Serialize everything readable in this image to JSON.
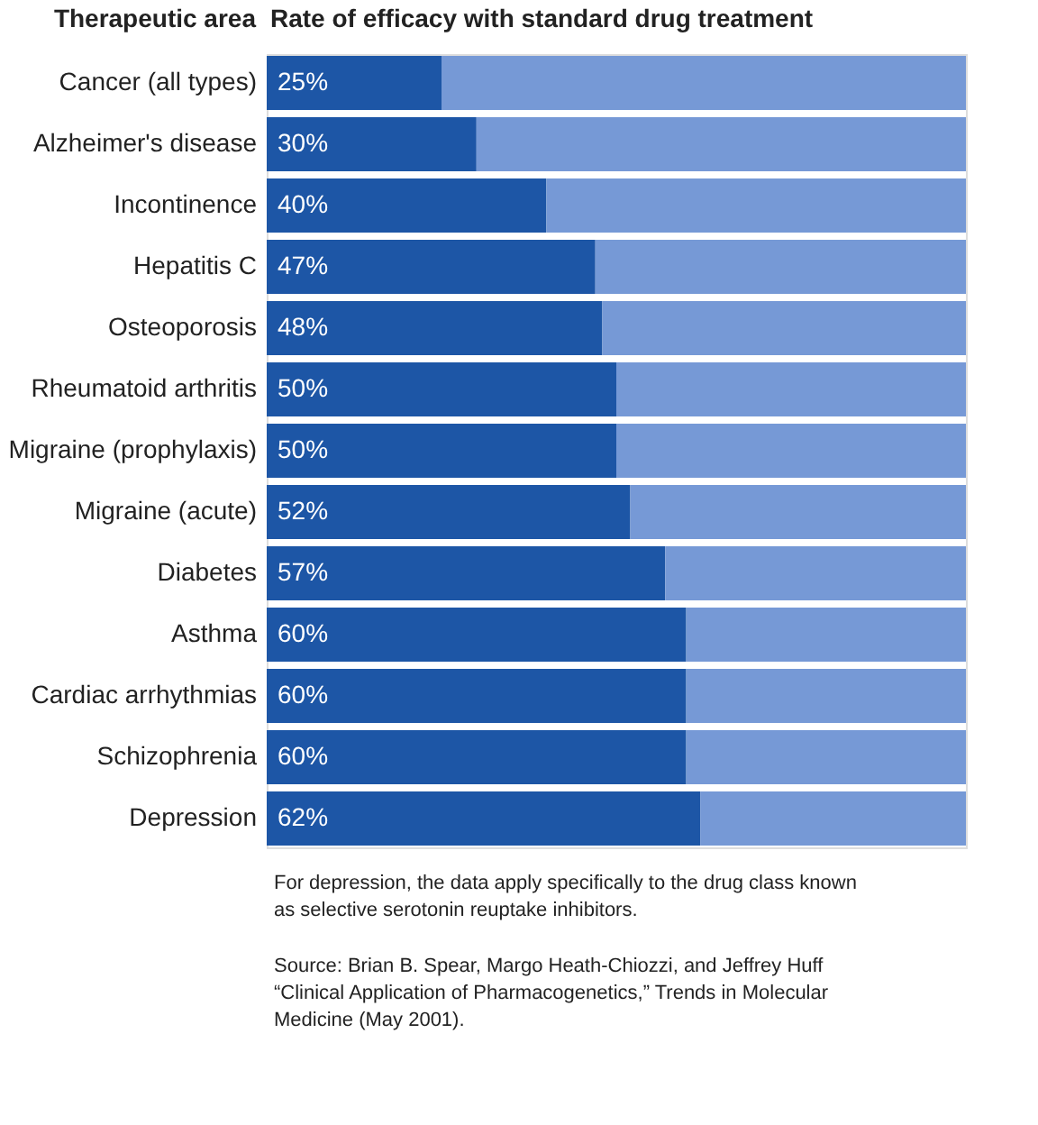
{
  "chart_data": {
    "type": "bar",
    "orientation": "horizontal",
    "stacked": true,
    "title": "Rate of efficacy with standard drug treatment",
    "ylabel": "Therapeutic area",
    "categories": [
      "Cancer (all types)",
      "Alzheimer's disease",
      "Incontinence",
      "Hepatitis C",
      "Osteoporosis",
      "Rheumatoid arthritis",
      "Migraine (prophylaxis)",
      "Migraine (acute)",
      "Diabetes",
      "Asthma",
      "Cardiac arrhythmias",
      "Schizophrenia",
      "Depression"
    ],
    "series": [
      {
        "color": "#1d56a6",
        "values": [
          25,
          30,
          40,
          47,
          48,
          50,
          50,
          52,
          57,
          60,
          60,
          60,
          62
        ],
        "value_labels": [
          "25%",
          "30%",
          "40%",
          "47%",
          "48%",
          "50%",
          "50%",
          "52%",
          "57%",
          "60%",
          "60%",
          "60%",
          "62%"
        ]
      },
      {
        "color": "#7699d6",
        "values": [
          75,
          70,
          60,
          53,
          52,
          50,
          50,
          48,
          43,
          40,
          40,
          40,
          38
        ]
      }
    ],
    "annotations": [
      "For depression, the data apply specifically to the drug class known as selective serotonin reuptake inhibitors.",
      "Source: Brian B. Spear, Margo Heath-Chiozzi, and Jeffrey Huff “Clinical Application of Pharmacogenetics,” Trends in Molecular Medicine (May 2001)."
    ]
  }
}
